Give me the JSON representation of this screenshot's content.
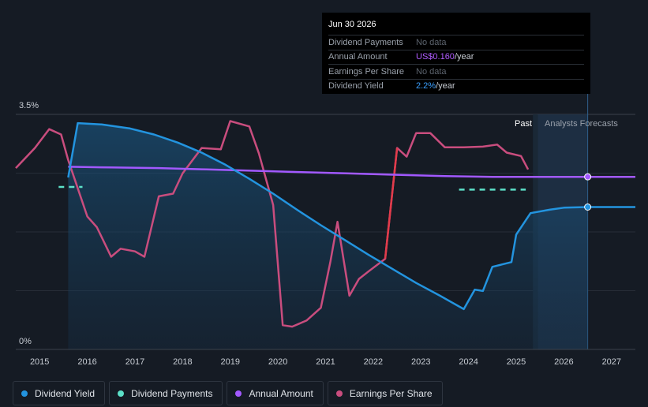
{
  "tooltip": {
    "date": "Jun 30 2026",
    "rows": [
      {
        "label": "Dividend Payments",
        "value": "No data"
      },
      {
        "label": "Annual Amount",
        "value": "US$0.160",
        "unit": "/year"
      },
      {
        "label": "Earnings Per Share",
        "value": "No data"
      },
      {
        "label": "Dividend Yield",
        "value": "2.2%",
        "unit": "/year"
      }
    ]
  },
  "regions": {
    "past_label": "Past",
    "forecast_label": "Analysts Forecasts"
  },
  "colors": {
    "background": "#151b24",
    "dividend_yield": "#2394df",
    "dividend_payments": "#5ce0c8",
    "annual_amount": "#a259ff",
    "earnings_per_share": "#c94d7e",
    "eps_rising_segment": "#e23b4a"
  },
  "legend": [
    {
      "label": "Dividend Yield",
      "color": "#2394df"
    },
    {
      "label": "Dividend Payments",
      "color": "#5ce0c8"
    },
    {
      "label": "Annual Amount",
      "color": "#a259ff"
    },
    {
      "label": "Earnings Per Share",
      "color": "#c94d7e"
    }
  ],
  "chart_data": {
    "type": "line",
    "title": "",
    "xlabel": "",
    "ylabel": "",
    "x_ticks": [
      "2015",
      "2016",
      "2017",
      "2018",
      "2019",
      "2020",
      "2021",
      "2022",
      "2023",
      "2024",
      "2025",
      "2026",
      "2027"
    ],
    "y_tick_labels": [
      "3.5%",
      "0%"
    ],
    "ylim": [
      0,
      3.5
    ],
    "xlim": [
      2014.5,
      2027.5
    ],
    "past_end": 2025.45,
    "forecast_end": 2026.5,
    "series": [
      {
        "name": "Dividend Yield",
        "unit": "%",
        "points": [
          [
            2015.6,
            2.56
          ],
          [
            2015.8,
            3.37
          ],
          [
            2016.3,
            3.35
          ],
          [
            2016.9,
            3.29
          ],
          [
            2017.4,
            3.2
          ],
          [
            2017.9,
            3.08
          ],
          [
            2018.4,
            2.93
          ],
          [
            2018.9,
            2.75
          ],
          [
            2019.4,
            2.54
          ],
          [
            2019.9,
            2.32
          ],
          [
            2020.4,
            2.08
          ],
          [
            2020.9,
            1.85
          ],
          [
            2021.4,
            1.63
          ],
          [
            2021.9,
            1.41
          ],
          [
            2022.4,
            1.2
          ],
          [
            2022.9,
            0.99
          ],
          [
            2023.4,
            0.8
          ],
          [
            2023.9,
            0.6
          ],
          [
            2024.13,
            0.89
          ],
          [
            2024.3,
            0.87
          ],
          [
            2024.5,
            1.23
          ],
          [
            2024.9,
            1.3
          ],
          [
            2025.0,
            1.71
          ],
          [
            2025.3,
            2.03
          ],
          [
            2025.7,
            2.08
          ],
          [
            2026.0,
            2.11
          ],
          [
            2026.5,
            2.12
          ],
          [
            2027.5,
            2.12
          ]
        ]
      },
      {
        "name": "Dividend Payments",
        "unit": "%",
        "points_sets": [
          [
            [
              2015.4,
              2.42
            ],
            [
              2015.9,
              2.42
            ]
          ],
          [
            [
              2023.8,
              2.38
            ],
            [
              2025.2,
              2.38
            ]
          ]
        ]
      },
      {
        "name": "Annual Amount",
        "unit": "scaled",
        "points": [
          [
            2015.6,
            2.72
          ],
          [
            2016.5,
            2.71
          ],
          [
            2017.5,
            2.7
          ],
          [
            2018.5,
            2.68
          ],
          [
            2019.5,
            2.66
          ],
          [
            2020.5,
            2.64
          ],
          [
            2021.5,
            2.62
          ],
          [
            2022.5,
            2.6
          ],
          [
            2023.5,
            2.58
          ],
          [
            2024.5,
            2.57
          ],
          [
            2025.5,
            2.57
          ],
          [
            2026.5,
            2.57
          ],
          [
            2027.5,
            2.57
          ]
        ]
      },
      {
        "name": "Earnings Per Share",
        "unit": "scaled",
        "points": [
          [
            2014.5,
            2.7
          ],
          [
            2014.9,
            3.0
          ],
          [
            2015.2,
            3.28
          ],
          [
            2015.45,
            3.2
          ],
          [
            2015.6,
            2.82
          ],
          [
            2016.0,
            1.98
          ],
          [
            2016.2,
            1.82
          ],
          [
            2016.5,
            1.38
          ],
          [
            2016.7,
            1.5
          ],
          [
            2017.0,
            1.46
          ],
          [
            2017.2,
            1.38
          ],
          [
            2017.5,
            2.28
          ],
          [
            2017.8,
            2.32
          ],
          [
            2018.0,
            2.62
          ],
          [
            2018.4,
            3.0
          ],
          [
            2018.8,
            2.98
          ],
          [
            2019.0,
            3.4
          ],
          [
            2019.4,
            3.32
          ],
          [
            2019.6,
            2.92
          ],
          [
            2019.9,
            2.15
          ],
          [
            2020.1,
            0.36
          ],
          [
            2020.3,
            0.34
          ],
          [
            2020.6,
            0.43
          ],
          [
            2020.9,
            0.62
          ],
          [
            2021.1,
            1.3
          ],
          [
            2021.25,
            1.9
          ],
          [
            2021.5,
            0.8
          ],
          [
            2021.7,
            1.05
          ],
          [
            2021.9,
            1.16
          ],
          [
            2022.25,
            1.35
          ],
          [
            2022.5,
            3.0
          ],
          [
            2022.7,
            2.87
          ],
          [
            2022.9,
            3.22
          ],
          [
            2023.2,
            3.22
          ],
          [
            2023.5,
            3.01
          ],
          [
            2023.9,
            3.01
          ],
          [
            2024.3,
            3.02
          ],
          [
            2024.6,
            3.05
          ],
          [
            2024.8,
            2.93
          ],
          [
            2025.1,
            2.88
          ],
          [
            2025.25,
            2.68
          ]
        ]
      }
    ]
  }
}
